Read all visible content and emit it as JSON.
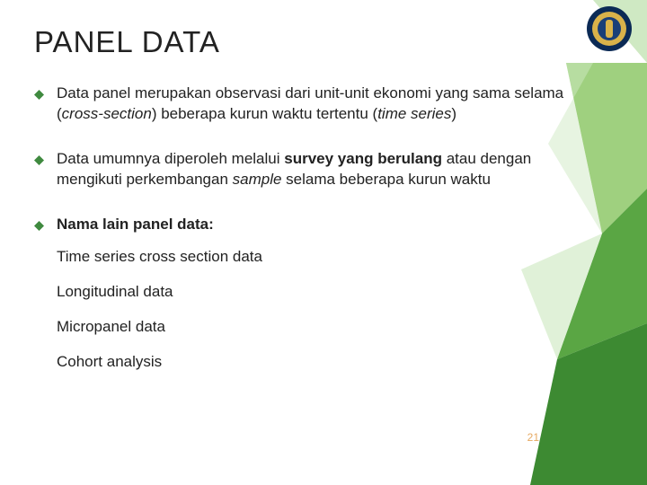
{
  "title": "PANEL DATA",
  "bullets": [
    {
      "segments": [
        {
          "text": "Data panel merupakan observasi dari unit-unit ekonomi yang sama selama ("
        },
        {
          "text": "cross-section",
          "italic": true
        },
        {
          "text": ") beberapa kurun waktu tertentu ("
        },
        {
          "text": "time series",
          "italic": true
        },
        {
          "text": ")"
        }
      ]
    },
    {
      "segments": [
        {
          "text": "Data umumnya diperoleh melalui "
        },
        {
          "text": "survey yang berulang",
          "bold": true
        },
        {
          "text": " atau dengan mengikuti perkembangan "
        },
        {
          "text": "sample",
          "italic": true
        },
        {
          "text": " selama beberapa kurun waktu"
        }
      ]
    },
    {
      "segments": [
        {
          "text": "Nama lain panel data: ",
          "bold": true
        }
      ],
      "subitems": [
        "Time series cross section data",
        "Longitudinal data",
        "Micropanel data",
        "Cohort analysis"
      ]
    }
  ],
  "page_number": "21",
  "style": {
    "bullet_color": "#3f8a3f",
    "bg_facet_colors": {
      "light": "#cfe9c3",
      "mid": "#9fd07f",
      "dark": "#5aa644",
      "darker": "#3d8a32"
    },
    "pagenum_color": "#e6a961",
    "logo": {
      "outer": "#0b2a55",
      "mid": "#d9b24a",
      "inner": "#1a3f78"
    }
  }
}
